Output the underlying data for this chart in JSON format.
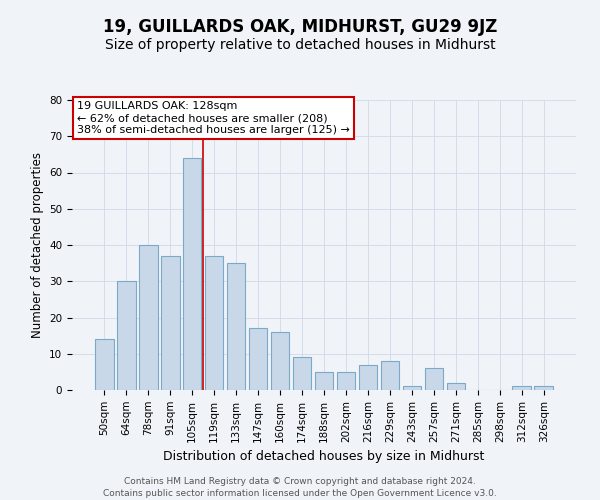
{
  "title": "19, GUILLARDS OAK, MIDHURST, GU29 9JZ",
  "subtitle": "Size of property relative to detached houses in Midhurst",
  "xlabel": "Distribution of detached houses by size in Midhurst",
  "ylabel": "Number of detached properties",
  "footer_line1": "Contains HM Land Registry data © Crown copyright and database right 2024.",
  "footer_line2": "Contains public sector information licensed under the Open Government Licence v3.0.",
  "bar_labels": [
    "50sqm",
    "64sqm",
    "78sqm",
    "91sqm",
    "105sqm",
    "119sqm",
    "133sqm",
    "147sqm",
    "160sqm",
    "174sqm",
    "188sqm",
    "202sqm",
    "216sqm",
    "229sqm",
    "243sqm",
    "257sqm",
    "271sqm",
    "285sqm",
    "298sqm",
    "312sqm",
    "326sqm"
  ],
  "bar_values": [
    14,
    30,
    40,
    37,
    64,
    37,
    35,
    17,
    16,
    9,
    5,
    5,
    7,
    8,
    1,
    6,
    2,
    0,
    0,
    1,
    1
  ],
  "bar_color": "#c8d8e8",
  "bar_edge_color": "#7aaac8",
  "bar_linewidth": 0.8,
  "annotation_text": "19 GUILLARDS OAK: 128sqm\n← 62% of detached houses are smaller (208)\n38% of semi-detached houses are larger (125) →",
  "annotation_box_color": "#ffffff",
  "annotation_box_edge_color": "#cc0000",
  "vline_x": 4.5,
  "vline_color": "#cc0000",
  "vline_linewidth": 1.2,
  "ylim": [
    0,
    80
  ],
  "grid_color": "#d0d8e8",
  "background_color": "#f0f4f8",
  "title_fontsize": 12,
  "subtitle_fontsize": 10,
  "ylabel_fontsize": 8.5,
  "xlabel_fontsize": 9,
  "tick_fontsize": 7.5,
  "annotation_fontsize": 8,
  "footer_fontsize": 6.5
}
